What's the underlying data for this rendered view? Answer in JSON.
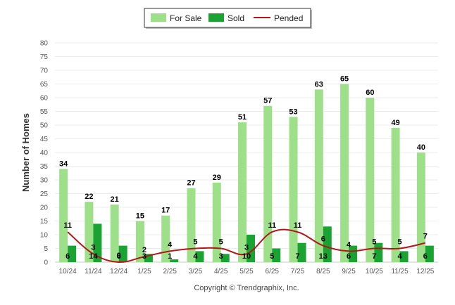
{
  "chart_data": {
    "type": "bar",
    "title": "",
    "xlabel": "",
    "ylabel": "Number of Homes",
    "ylim": [
      0,
      80
    ],
    "yticks": [
      0,
      5,
      10,
      15,
      20,
      25,
      30,
      35,
      40,
      45,
      50,
      55,
      60,
      65,
      70,
      75,
      80
    ],
    "categories": [
      "10/24",
      "11/24",
      "12/24",
      "1/25",
      "2/25",
      "3/25",
      "4/25",
      "5/25",
      "6/25",
      "7/25",
      "8/25",
      "9/25",
      "10/25",
      "11/25",
      "12/25"
    ],
    "series": [
      {
        "name": "For Sale",
        "kind": "bar",
        "color": "#9ee08a",
        "values": [
          34,
          22,
          21,
          15,
          17,
          27,
          29,
          51,
          57,
          53,
          63,
          65,
          60,
          49,
          40
        ]
      },
      {
        "name": "Sold",
        "kind": "bar",
        "color": "#1aa332",
        "values": [
          6,
          14,
          6,
          3,
          1,
          4,
          3,
          10,
          5,
          7,
          13,
          6,
          7,
          4,
          6
        ]
      },
      {
        "name": "Pended",
        "kind": "line",
        "color": "#b01818",
        "values": [
          11,
          3,
          0,
          2,
          4,
          5,
          5,
          3,
          11,
          11,
          6,
          4,
          5,
          5,
          7
        ]
      }
    ],
    "legend_position": "top-center"
  },
  "legend": {
    "for_sale": "For Sale",
    "sold": "Sold",
    "pended": "Pended"
  },
  "footer": {
    "copyright": "Copyright © Trendgraphix, Inc."
  }
}
